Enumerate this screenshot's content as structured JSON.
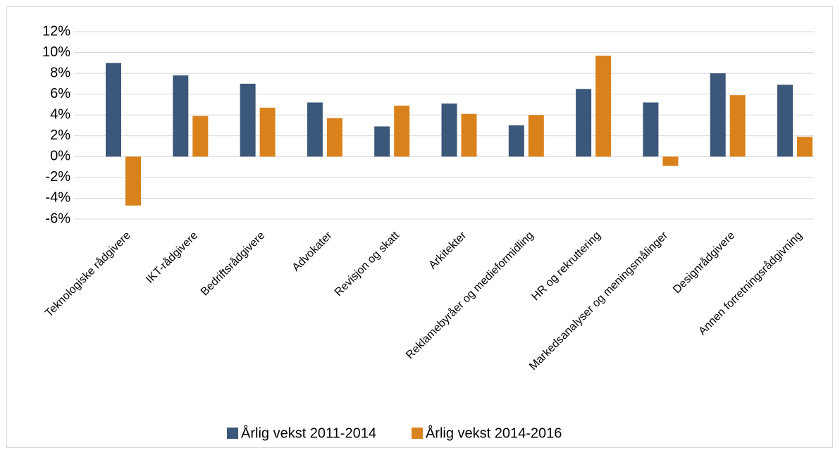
{
  "chart_data": {
    "type": "bar",
    "categories": [
      "Teknologiske rådgivere",
      "IKT-rådgivere",
      "Bedriftsrådgivere",
      "Advokater",
      "Revisjon og skatt",
      "Arkitekter",
      "Reklamebyråer og medieformidling",
      "HR og rekruttering",
      "Markedsanalyser og meningsmålinger",
      "Designrådgivere",
      "Annen forretningsrådgivning"
    ],
    "series": [
      {
        "name": "Årlig vekst 2011-2014",
        "color": "#3b5779",
        "values": [
          9.0,
          7.8,
          7.0,
          5.2,
          2.9,
          5.1,
          3.0,
          6.5,
          5.2,
          8.0,
          6.9
        ]
      },
      {
        "name": "Årlig vekst 2014-2016",
        "color": "#d9821c",
        "values": [
          -4.7,
          3.9,
          4.7,
          3.7,
          4.9,
          4.1,
          4.0,
          9.7,
          -0.9,
          5.9,
          1.9
        ]
      }
    ],
    "ylim": [
      -6,
      12
    ],
    "yticks": [
      {
        "value": -6,
        "label": "-6%"
      },
      {
        "value": -4,
        "label": "-4%"
      },
      {
        "value": -2,
        "label": "-2%"
      },
      {
        "value": 0,
        "label": "0%"
      },
      {
        "value": 2,
        "label": "2%"
      },
      {
        "value": 4,
        "label": "4%"
      },
      {
        "value": 6,
        "label": "6%"
      },
      {
        "value": 8,
        "label": "8%"
      },
      {
        "value": 10,
        "label": "10%"
      },
      {
        "value": 12,
        "label": "12%"
      }
    ],
    "grid": true,
    "legend": "bottom"
  }
}
